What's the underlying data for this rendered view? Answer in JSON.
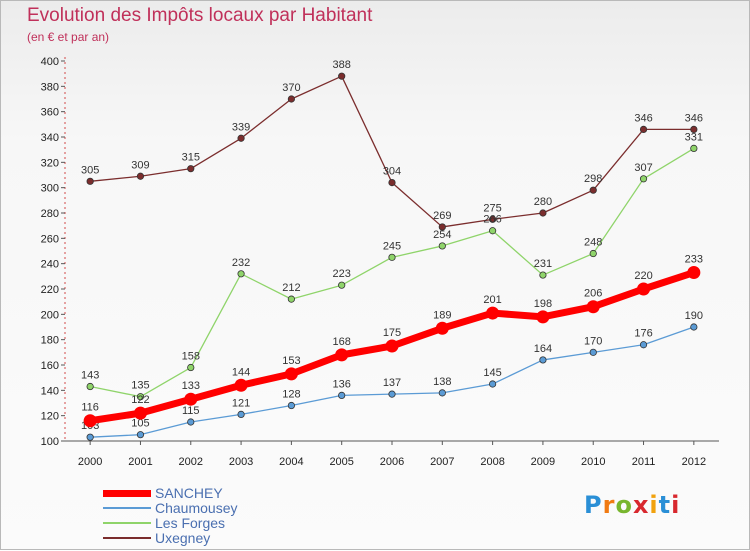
{
  "chart_data": {
    "type": "line",
    "title": "Evolution des Impôts locaux par Habitant",
    "subtitle": "(en € et par an)",
    "x": [
      "2000",
      "2001",
      "2002",
      "2003",
      "2004",
      "2005",
      "2006",
      "2007",
      "2008",
      "2009",
      "2010",
      "2011",
      "2012"
    ],
    "ylim": [
      100,
      400
    ],
    "yticks": [
      100,
      120,
      140,
      160,
      180,
      200,
      220,
      240,
      260,
      280,
      300,
      320,
      340,
      360,
      380,
      400
    ],
    "grid": false,
    "legend_position": "bottom-left",
    "series": [
      {
        "name": "Uxegney",
        "color": "#7b2d2d",
        "values": [
          305,
          309,
          315,
          339,
          370,
          388,
          304,
          269,
          275,
          280,
          298,
          346,
          346
        ]
      },
      {
        "name": "Les Forges",
        "color": "#8fd46a",
        "values": [
          143,
          135,
          158,
          232,
          212,
          223,
          245,
          254,
          266,
          231,
          248,
          307,
          331
        ]
      },
      {
        "name": "Chaumousey",
        "color": "#5b9bd5",
        "values": [
          103,
          105,
          115,
          121,
          128,
          136,
          137,
          138,
          145,
          164,
          170,
          176,
          190
        ]
      },
      {
        "name": "SANCHEY",
        "color": "#ff0000",
        "values": [
          116,
          122,
          133,
          144,
          153,
          168,
          175,
          189,
          201,
          198,
          206,
          220,
          233
        ]
      }
    ]
  },
  "legend_order": [
    "SANCHEY",
    "Chaumousey",
    "Les Forges",
    "Uxegney"
  ],
  "brand": {
    "text": "Proxiti",
    "letter_colors": [
      "#2a8fd6",
      "#f07a12",
      "#78b62e",
      "#d8282e",
      "#f1a20e",
      "#2a8fd6",
      "#d8282e"
    ]
  }
}
